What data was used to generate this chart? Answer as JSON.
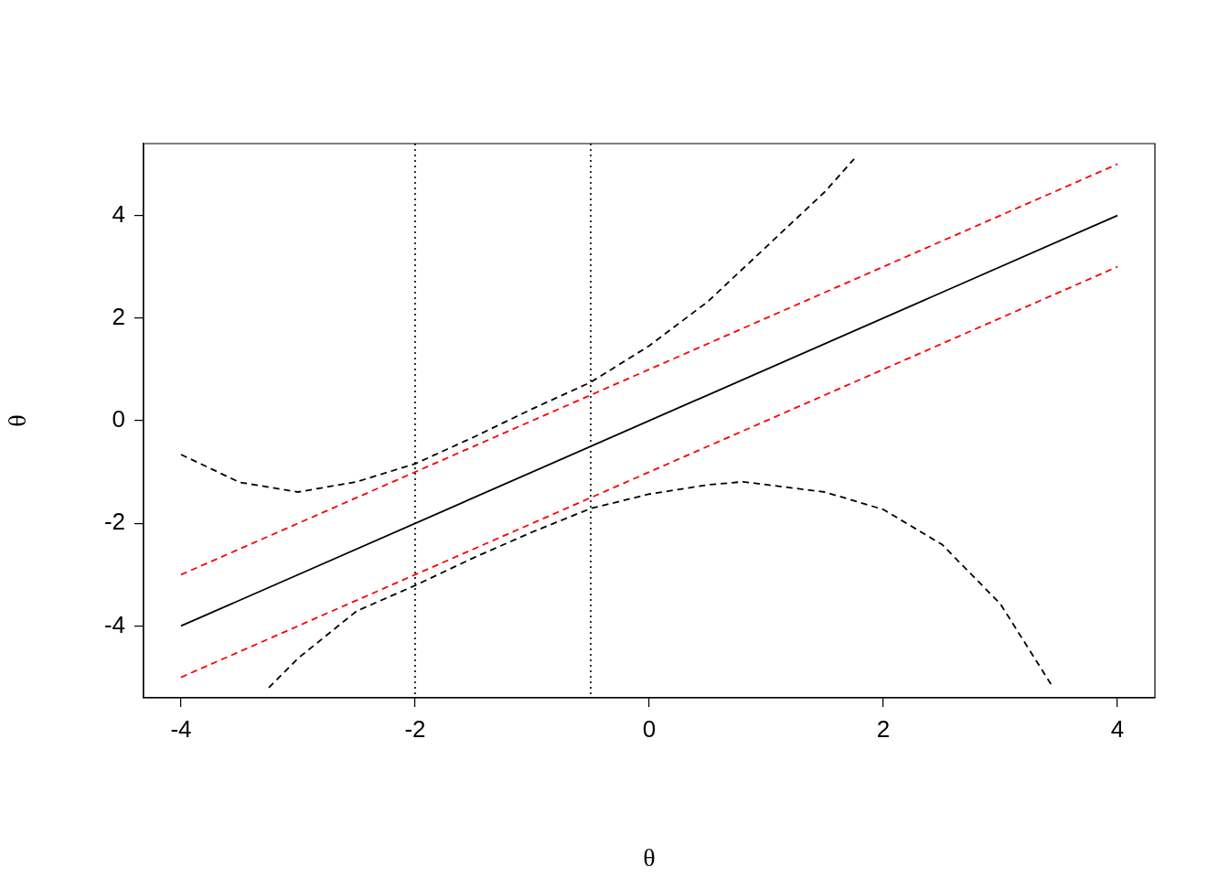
{
  "chart_data": {
    "type": "line",
    "xlabel": "θ",
    "ylabel": "θ",
    "xlim": [
      -4.32,
      4.32
    ],
    "ylim": [
      -5.4,
      5.4
    ],
    "xticks": [
      -4,
      -2,
      0,
      2,
      4
    ],
    "yticks": [
      -4,
      -2,
      0,
      2,
      4
    ],
    "grid": false,
    "legend": false,
    "marker": "none",
    "series": [
      {
        "color": "#000000",
        "line_style": "solid",
        "x": [
          -4,
          4
        ],
        "values": [
          -4,
          4
        ]
      },
      {
        "color": "#ff0000",
        "line_style": "dashed",
        "x": [
          -4,
          4
        ],
        "values": [
          -3,
          5
        ]
      },
      {
        "color": "#ff0000",
        "line_style": "dashed",
        "x": [
          -4,
          4
        ],
        "values": [
          -5,
          3
        ]
      },
      {
        "color": "#000000",
        "line_style": "dashed",
        "x": [
          -4,
          -3.5,
          -3,
          -2.5,
          -2,
          -1.5,
          -1,
          -0.5,
          0,
          0.5,
          1,
          1.5,
          1.75
        ],
        "values": [
          -0.66,
          -1.2,
          -1.39,
          -1.19,
          -0.84,
          -0.32,
          0.23,
          0.75,
          1.46,
          2.32,
          3.39,
          4.46,
          5.1
        ]
      },
      {
        "color": "#000000",
        "line_style": "dashed",
        "x": [
          -3.25,
          -3,
          -2.5,
          -2,
          -1.5,
          -1,
          -0.5,
          0,
          0.5,
          0.8,
          1.5,
          2,
          2.5,
          3,
          3.45
        ],
        "values": [
          -5.2,
          -4.63,
          -3.71,
          -3.21,
          -2.67,
          -2.17,
          -1.71,
          -1.43,
          -1.25,
          -1.19,
          -1.39,
          -1.73,
          -2.41,
          -3.57,
          -5.2
        ]
      }
    ],
    "ref_lines": [
      {
        "axis": "x",
        "value": -2,
        "color": "#000000",
        "line_style": "dotted"
      },
      {
        "axis": "x",
        "value": -0.5,
        "color": "#000000",
        "line_style": "dotted"
      }
    ]
  }
}
